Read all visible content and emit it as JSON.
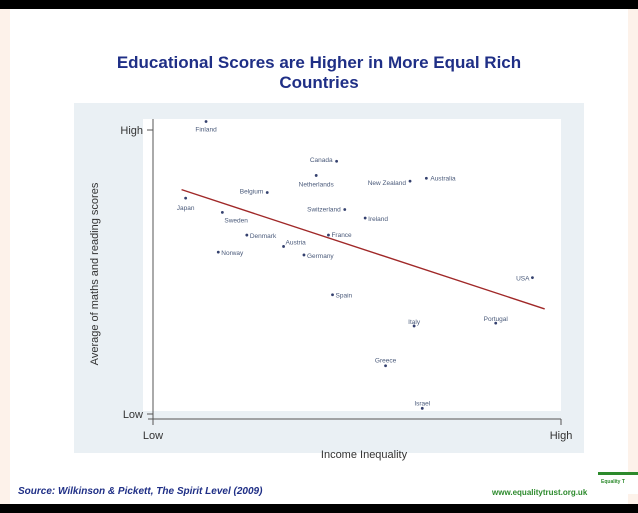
{
  "title_line1": "Educational Scores are Higher in More Equal Rich",
  "title_line2": "Countries",
  "source": "Source: Wilkinson & Pickett, The Spirit Level (2009)",
  "website": "www.equalitytrust.org.uk",
  "logo_text": "Equality T",
  "colors": {
    "title": "#1f2f86",
    "trend_line": "#a02828",
    "points": "#34406e",
    "labels": "#4a5a7a",
    "plot_bg": "#eaf0f4"
  },
  "chart_data": {
    "type": "scatter",
    "xlabel": "Income Inequality",
    "ylabel": "Average of maths and reading scores",
    "x_tick_labels": [
      "Low",
      "High"
    ],
    "y_tick_labels": [
      "High",
      "Low"
    ],
    "xlim": [
      0,
      100
    ],
    "ylim": [
      0,
      100
    ],
    "grid": false,
    "legend": "none",
    "points": [
      {
        "label": "Finland",
        "x": 13,
        "y": 103
      },
      {
        "label": "Canada",
        "x": 45,
        "y": 89
      },
      {
        "label": "Netherlands",
        "x": 40,
        "y": 84
      },
      {
        "label": "Australia",
        "x": 67,
        "y": 83
      },
      {
        "label": "New Zealand",
        "x": 63,
        "y": 82
      },
      {
        "label": "Belgium",
        "x": 28,
        "y": 78
      },
      {
        "label": "Japan",
        "x": 8,
        "y": 76
      },
      {
        "label": "Switzerland",
        "x": 47,
        "y": 72
      },
      {
        "label": "Sweden",
        "x": 17,
        "y": 71
      },
      {
        "label": "Ireland",
        "x": 52,
        "y": 69
      },
      {
        "label": "France",
        "x": 43,
        "y": 63
      },
      {
        "label": "Denmark",
        "x": 23,
        "y": 63
      },
      {
        "label": "Austria",
        "x": 32,
        "y": 59
      },
      {
        "label": "Norway",
        "x": 16,
        "y": 57
      },
      {
        "label": "Germany",
        "x": 37,
        "y": 56
      },
      {
        "label": "USA",
        "x": 93,
        "y": 48
      },
      {
        "label": "Spain",
        "x": 44,
        "y": 42
      },
      {
        "label": "Portugal",
        "x": 84,
        "y": 32
      },
      {
        "label": "Italy",
        "x": 64,
        "y": 31
      },
      {
        "label": "Greece",
        "x": 57,
        "y": 17
      },
      {
        "label": "Israel",
        "x": 66,
        "y": 2
      }
    ],
    "trend_line": {
      "x": [
        7,
        96
      ],
      "y": [
        79,
        37
      ]
    }
  }
}
